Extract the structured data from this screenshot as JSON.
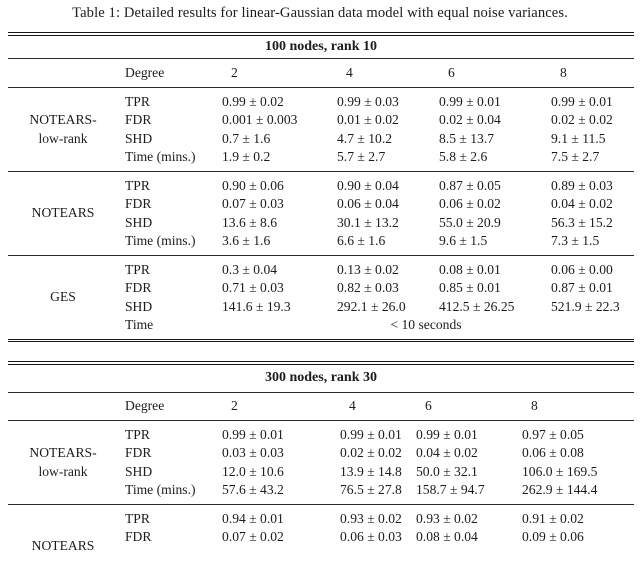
{
  "caption": "Table 1: Detailed results for linear-Gaussian data model with equal noise variances.",
  "tables": [
    {
      "section_title": "100 nodes, rank 10",
      "degree_label": "Degree",
      "degrees": [
        "2",
        "4",
        "6",
        "8"
      ],
      "blocks": [
        {
          "method_lines": [
            "NOTEARS-",
            "low-rank"
          ],
          "rows": [
            {
              "metric": "TPR",
              "values": [
                "0.99 ± 0.02",
                "0.99 ± 0.03",
                "0.99 ± 0.01",
                "0.99 ± 0.01"
              ]
            },
            {
              "metric": "FDR",
              "values": [
                "0.001 ± 0.003",
                "0.01 ± 0.02",
                "0.02 ± 0.04",
                "0.02 ± 0.02"
              ]
            },
            {
              "metric": "SHD",
              "values": [
                "0.7 ± 1.6",
                "4.7 ± 10.2",
                "8.5 ± 13.7",
                "9.1 ± 11.5"
              ]
            },
            {
              "metric": "Time (mins.)",
              "values": [
                "1.9 ± 0.2",
                "5.7 ± 2.7",
                "5.8 ± 2.6",
                "7.5 ± 2.7"
              ]
            }
          ]
        },
        {
          "method_lines": [
            "NOTEARS"
          ],
          "rows": [
            {
              "metric": "TPR",
              "values": [
                "0.90 ± 0.06",
                "0.90 ± 0.04",
                "0.87 ± 0.05",
                "0.89 ± 0.03"
              ]
            },
            {
              "metric": "FDR",
              "values": [
                "0.07 ± 0.03",
                "0.06 ± 0.04",
                "0.06 ± 0.02",
                "0.04 ± 0.02"
              ]
            },
            {
              "metric": "SHD",
              "values": [
                "13.6 ± 8.6",
                "30.1 ± 13.2",
                "55.0 ± 20.9",
                "56.3 ± 15.2"
              ]
            },
            {
              "metric": "Time (mins.)",
              "values": [
                "3.6 ± 1.6",
                "6.6 ± 1.6",
                "9.6 ± 1.5",
                "7.3 ± 1.5"
              ]
            }
          ]
        },
        {
          "method_lines": [
            "GES"
          ],
          "rows": [
            {
              "metric": "TPR",
              "values": [
                "0.3 ± 0.04",
                "0.13 ± 0.02",
                "0.08 ± 0.01",
                "0.06 ± 0.00"
              ]
            },
            {
              "metric": "FDR",
              "values": [
                "0.71 ± 0.03",
                "0.82 ± 0.03",
                "0.85 ± 0.01",
                "0.87 ± 0.01"
              ]
            },
            {
              "metric": "SHD",
              "values": [
                "141.6 ± 19.3",
                "292.1 ± 26.0",
                "412.5 ± 26.25",
                "521.9 ± 22.3"
              ]
            },
            {
              "metric": "Time",
              "span_value": "< 10 seconds"
            }
          ]
        }
      ]
    },
    {
      "section_title": "300 nodes, rank 30",
      "degree_label": "Degree",
      "degrees": [
        "2",
        "4",
        "6",
        "8"
      ],
      "blocks": [
        {
          "method_lines": [
            "NOTEARS-",
            "low-rank"
          ],
          "rows": [
            {
              "metric": "TPR",
              "values": [
                "0.99 ± 0.01",
                "0.99 ± 0.01",
                "0.99 ± 0.01",
                "0.97 ± 0.05"
              ]
            },
            {
              "metric": "FDR",
              "values": [
                "0.03 ± 0.03",
                "0.02 ± 0.02",
                "0.04 ± 0.02",
                "0.06 ± 0.08"
              ]
            },
            {
              "metric": "SHD",
              "values": [
                "12.0 ± 10.6",
                "13.9 ± 14.8",
                "50.0 ± 32.1",
                "106.0 ± 169.5"
              ]
            },
            {
              "metric": "Time (mins.)",
              "values": [
                "57.6 ± 43.2",
                "76.5 ± 27.8",
                "158.7 ± 94.7",
                "262.9 ± 144.4"
              ]
            }
          ]
        },
        {
          "method_lines": [
            "NOTEARS"
          ],
          "rows": [
            {
              "metric": "TPR",
              "values": [
                "0.94 ± 0.01",
                "0.93 ± 0.02",
                "0.93 ± 0.02",
                "0.91 ± 0.02"
              ]
            },
            {
              "metric": "FDR",
              "values": [
                "0.07 ± 0.02",
                "0.06 ± 0.03",
                "0.08 ± 0.04",
                "0.09 ± 0.06"
              ]
            }
          ]
        }
      ]
    }
  ]
}
